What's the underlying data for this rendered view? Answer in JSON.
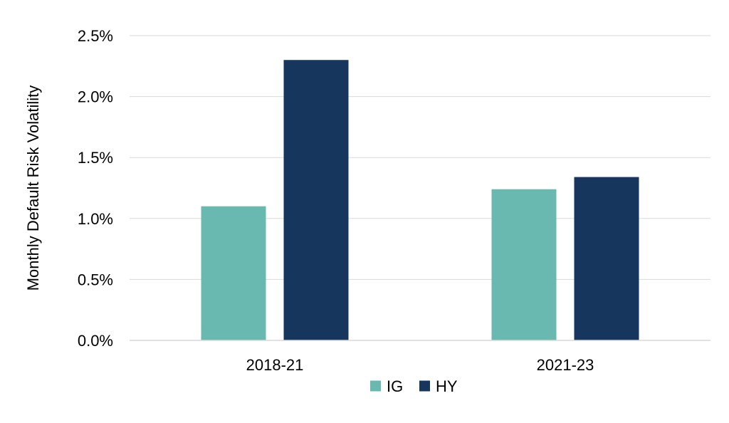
{
  "chart_data": {
    "type": "bar",
    "categories": [
      "2018-21",
      "2021-23"
    ],
    "series": [
      {
        "name": "IG",
        "values": [
          1.1,
          1.24
        ],
        "color": "#6ab9b0"
      },
      {
        "name": "HY",
        "values": [
          2.3,
          1.34
        ],
        "color": "#17365d"
      }
    ],
    "ylabel": "Monthly Default Risk Volatility",
    "ylim": [
      0,
      2.5
    ],
    "yticks": [
      "0.0%",
      "0.5%",
      "1.0%",
      "1.5%",
      "2.0%",
      "2.5%"
    ],
    "ytick_values": [
      0,
      0.5,
      1.0,
      1.5,
      2.0,
      2.5
    ],
    "grid": true,
    "legend_position": "bottom"
  }
}
